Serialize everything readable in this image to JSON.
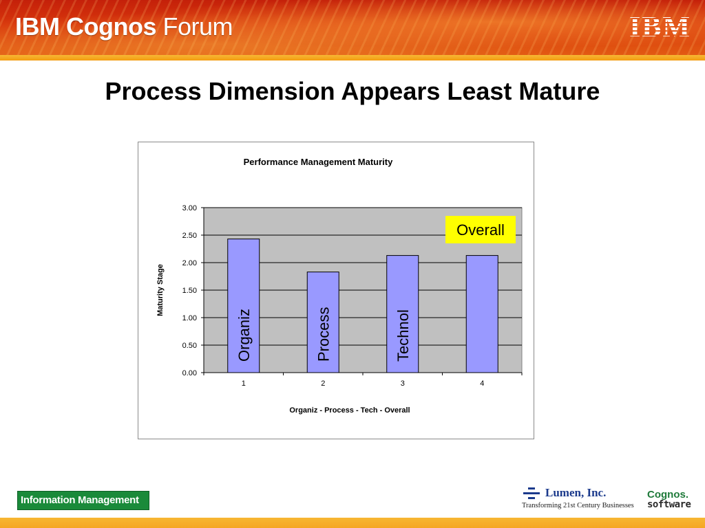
{
  "header": {
    "brand_bold": "IBM Cognos",
    "brand_light": " Forum",
    "ibm_logo": "IBM"
  },
  "slide": {
    "title": "Process Dimension Appears Least Mature"
  },
  "chart_data": {
    "type": "bar",
    "title": "Performance Management Maturity",
    "xlabel": "Organiz - Process - Tech - Overall",
    "ylabel": "Maturity Stage",
    "categories": [
      "1",
      "2",
      "3",
      "4"
    ],
    "values": [
      2.43,
      1.83,
      2.13,
      2.13
    ],
    "bar_labels": [
      "Organiz",
      "Process",
      "Technol",
      ""
    ],
    "ylim": [
      0,
      3
    ],
    "yticks": [
      "0.00",
      "0.50",
      "1.00",
      "1.50",
      "2.00",
      "2.50",
      "3.00"
    ],
    "ytick_values": [
      0,
      0.5,
      1,
      1.5,
      2,
      2.5,
      3
    ],
    "annotation": "Overall",
    "grid": true,
    "legend": "none",
    "colors": {
      "bar_fill": "#9999ff",
      "bar_stroke": "#000000",
      "plot_bg": "#c0c0c0",
      "gridline": "#000000",
      "annotation_bg": "#ffff00"
    }
  },
  "footer": {
    "info_badge": "Information Management",
    "lumen_name": "Lumen, Inc.",
    "lumen_tagline": "Transforming 21st Century Businesses",
    "cognos_line1": "Cognos.",
    "cognos_line2": "software"
  }
}
